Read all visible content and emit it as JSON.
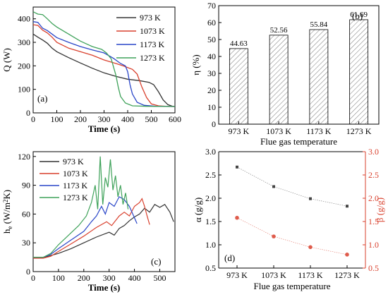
{
  "chart_data": [
    {
      "panel_label": "(a)",
      "type": "line",
      "xlabel": "Time (s)",
      "ylabel": "Q (W)",
      "xlim": [
        0,
        600
      ],
      "ylim": [
        0,
        450
      ],
      "xticks": [
        "0",
        "100",
        "200",
        "300",
        "400",
        "500",
        "600"
      ],
      "yticks": [
        "0",
        "100",
        "200",
        "300",
        "400"
      ],
      "legend_position": "top-right",
      "series": [
        {
          "name": "973 K",
          "color": "#333333",
          "points": [
            [
              0,
              335
            ],
            [
              20,
              322
            ],
            [
              40,
              310
            ],
            [
              60,
              296
            ],
            [
              80,
              275
            ],
            [
              100,
              260
            ],
            [
              150,
              235
            ],
            [
              200,
              212
            ],
            [
              250,
              190
            ],
            [
              300,
              170
            ],
            [
              350,
              155
            ],
            [
              400,
              143
            ],
            [
              450,
              137
            ],
            [
              490,
              130
            ],
            [
              510,
              120
            ],
            [
              530,
              90
            ],
            [
              550,
              55
            ],
            [
              570,
              35
            ],
            [
              590,
              28
            ],
            [
              600,
              27
            ]
          ]
        },
        {
          "name": "1073 K",
          "color": "#d9412e",
          "points": [
            [
              0,
              375
            ],
            [
              20,
              372
            ],
            [
              40,
              352
            ],
            [
              60,
              340
            ],
            [
              80,
              322
            ],
            [
              100,
              300
            ],
            [
              150,
              275
            ],
            [
              200,
              260
            ],
            [
              250,
              245
            ],
            [
              300,
              225
            ],
            [
              350,
              210
            ],
            [
              380,
              200
            ],
            [
              420,
              185
            ],
            [
              440,
              165
            ],
            [
              460,
              110
            ],
            [
              480,
              65
            ],
            [
              500,
              38
            ],
            [
              530,
              30
            ],
            [
              560,
              28
            ],
            [
              600,
              27
            ]
          ]
        },
        {
          "name": "1173 K",
          "color": "#2a46c8",
          "points": [
            [
              0,
              388
            ],
            [
              20,
              385
            ],
            [
              40,
              360
            ],
            [
              60,
              350
            ],
            [
              80,
              335
            ],
            [
              100,
              320
            ],
            [
              150,
              300
            ],
            [
              200,
              282
            ],
            [
              250,
              268
            ],
            [
              300,
              255
            ],
            [
              340,
              232
            ],
            [
              370,
              210
            ],
            [
              390,
              200
            ],
            [
              400,
              175
            ],
            [
              410,
              120
            ],
            [
              420,
              80
            ],
            [
              440,
              45
            ],
            [
              470,
              32
            ],
            [
              520,
              28
            ],
            [
              600,
              27
            ]
          ]
        },
        {
          "name": "1273 K",
          "color": "#3fa25a",
          "points": [
            [
              0,
              430
            ],
            [
              20,
              420
            ],
            [
              40,
              418
            ],
            [
              60,
              400
            ],
            [
              80,
              380
            ],
            [
              100,
              365
            ],
            [
              150,
              335
            ],
            [
              200,
              305
            ],
            [
              250,
              282
            ],
            [
              290,
              270
            ],
            [
              310,
              255
            ],
            [
              330,
              230
            ],
            [
              350,
              160
            ],
            [
              360,
              110
            ],
            [
              370,
              70
            ],
            [
              390,
              42
            ],
            [
              420,
              30
            ],
            [
              480,
              28
            ],
            [
              600,
              27
            ]
          ]
        }
      ]
    },
    {
      "panel_label": "(b)",
      "type": "bar",
      "xlabel": "Flue gas temperature",
      "ylabel": "η (%)",
      "ylim": [
        0,
        70
      ],
      "yticks": [
        "0",
        "10",
        "20",
        "30",
        "40",
        "50",
        "60",
        "70"
      ],
      "categories": [
        "973 K",
        "1073 K",
        "1173 K",
        "1273 K"
      ],
      "values": [
        44.63,
        52.56,
        55.84,
        61.69
      ],
      "value_labels": [
        "44.63",
        "52.56",
        "55.84",
        "61.69"
      ],
      "bar_fill": "hatched"
    },
    {
      "panel_label": "(c)",
      "type": "line",
      "xlabel": "Time (s)",
      "ylabel": "h_e (W/m²K)",
      "ylabel_main": "h",
      "ylabel_sub": "e",
      "ylabel_rest": " (W/m",
      "ylabel_sup": "2",
      "ylabel_end": "K)",
      "xlim": [
        0,
        560
      ],
      "ylim": [
        0,
        125
      ],
      "xticks": [
        "0",
        "100",
        "200",
        "300",
        "400",
        "500"
      ],
      "yticks": [
        "0",
        "30",
        "60",
        "90",
        "120"
      ],
      "legend_position": "top-left",
      "series": [
        {
          "name": "973 K",
          "color": "#333333",
          "points": [
            [
              0,
              15
            ],
            [
              40,
              15
            ],
            [
              60,
              16
            ],
            [
              100,
              19
            ],
            [
              150,
              24
            ],
            [
              200,
              30
            ],
            [
              250,
              36
            ],
            [
              300,
              41
            ],
            [
              320,
              38
            ],
            [
              340,
              45
            ],
            [
              360,
              48
            ],
            [
              380,
              53
            ],
            [
              400,
              57
            ],
            [
              420,
              60
            ],
            [
              440,
              66
            ],
            [
              460,
              62
            ],
            [
              480,
              70
            ],
            [
              500,
              67
            ],
            [
              520,
              70
            ],
            [
              540,
              62
            ],
            [
              555,
              52
            ]
          ]
        },
        {
          "name": "1073 K",
          "color": "#d9412e",
          "points": [
            [
              0,
              14
            ],
            [
              40,
              14
            ],
            [
              70,
              16
            ],
            [
              100,
              21
            ],
            [
              150,
              29
            ],
            [
              200,
              37
            ],
            [
              250,
              46
            ],
            [
              290,
              52
            ],
            [
              310,
              48
            ],
            [
              340,
              58
            ],
            [
              360,
              62
            ],
            [
              380,
              58
            ],
            [
              400,
              68
            ],
            [
              420,
              72
            ],
            [
              430,
              76
            ],
            [
              440,
              68
            ],
            [
              450,
              58
            ],
            [
              460,
              49
            ]
          ]
        },
        {
          "name": "1173 K",
          "color": "#2a46c8",
          "points": [
            [
              0,
              15
            ],
            [
              40,
              15
            ],
            [
              70,
              18
            ],
            [
              100,
              24
            ],
            [
              150,
              33
            ],
            [
              200,
              42
            ],
            [
              230,
              52
            ],
            [
              250,
              58
            ],
            [
              270,
              68
            ],
            [
              285,
              60
            ],
            [
              300,
              72
            ],
            [
              320,
              68
            ],
            [
              340,
              78
            ],
            [
              360,
              75
            ],
            [
              380,
              68
            ],
            [
              400,
              56
            ],
            [
              410,
              50
            ]
          ]
        },
        {
          "name": "1273 K",
          "color": "#3fa25a",
          "points": [
            [
              0,
              15
            ],
            [
              40,
              15
            ],
            [
              70,
              19
            ],
            [
              100,
              28
            ],
            [
              140,
              38
            ],
            [
              180,
              48
            ],
            [
              210,
              58
            ],
            [
              230,
              72
            ],
            [
              245,
              90
            ],
            [
              255,
              65
            ],
            [
              265,
              120
            ],
            [
              275,
              70
            ],
            [
              285,
              98
            ],
            [
              295,
              88
            ],
            [
              305,
              117
            ],
            [
              315,
              85
            ],
            [
              325,
              100
            ],
            [
              335,
              78
            ],
            [
              345,
              90
            ],
            [
              355,
              70
            ],
            [
              365,
              82
            ],
            [
              375,
              65
            ]
          ]
        }
      ]
    },
    {
      "panel_label": "(d)",
      "type": "line",
      "xlabel": "Flue gas temperature",
      "categories": [
        "973 K",
        "1073 K",
        "1173 K",
        "1273 K"
      ],
      "left_axis": {
        "label": "α (g/g)",
        "ylim": [
          0.5,
          3.0
        ],
        "yticks": [
          "0.5",
          "1.0",
          "1.5",
          "2.0",
          "2.5",
          "3.0"
        ],
        "color": "#000000"
      },
      "right_axis": {
        "label": "β (g/g)",
        "ylim": [
          0.5,
          3.0
        ],
        "yticks": [
          "0.5",
          "1.0",
          "1.5",
          "2.0",
          "2.5",
          "3.0"
        ],
        "color": "#d9412e"
      },
      "series": [
        {
          "name": "α",
          "axis": "left",
          "color": "#444444",
          "marker": "square",
          "values": [
            2.67,
            2.25,
            1.99,
            1.83
          ]
        },
        {
          "name": "β",
          "axis": "right",
          "color": "#d9412e",
          "marker": "circle",
          "values": [
            1.58,
            1.18,
            0.95,
            0.79
          ]
        }
      ]
    }
  ]
}
